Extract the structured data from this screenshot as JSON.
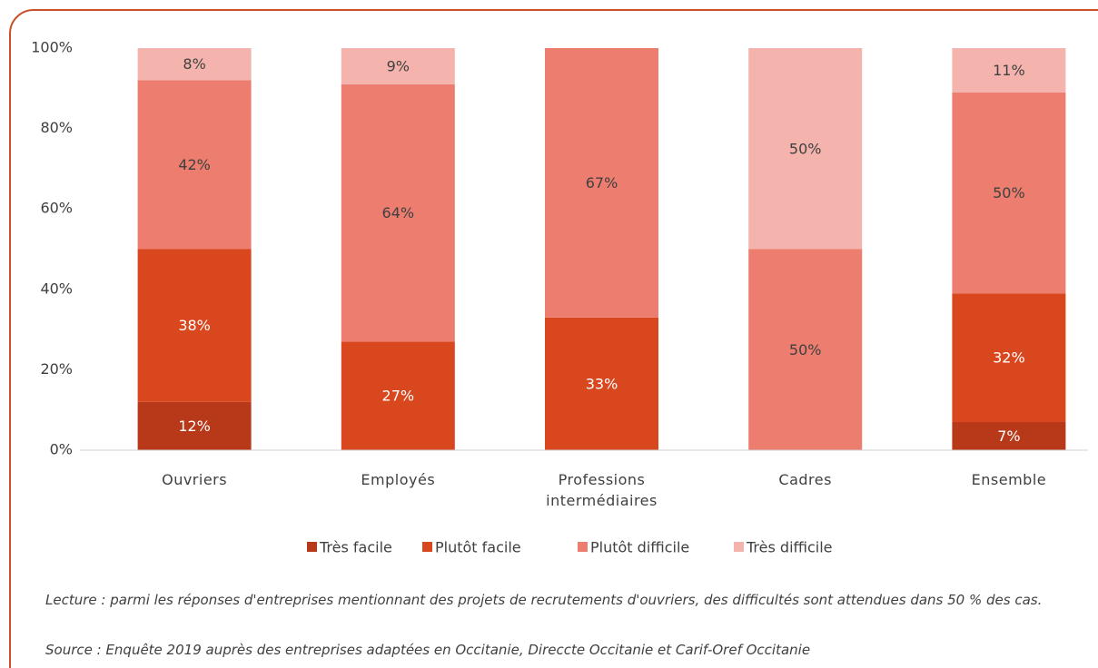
{
  "chart_data": {
    "type": "stacked_bar",
    "categories": [
      "Ouvriers",
      "Employés",
      "Professions intermédiaires",
      "Cadres",
      "Ensemble"
    ],
    "series": [
      {
        "name": "Très facile",
        "color": "#b8391a",
        "values": [
          12,
          0,
          0,
          0,
          7
        ],
        "value_labels": [
          "12%",
          null,
          null,
          null,
          "7%"
        ]
      },
      {
        "name": "Plutôt facile",
        "color": "#d9471f",
        "values": [
          38,
          27,
          33,
          0,
          32
        ],
        "value_labels": [
          "38%",
          "27%",
          "33%",
          null,
          "32%"
        ]
      },
      {
        "name": "Plutôt difficile",
        "color": "#ec7d6f",
        "values": [
          42,
          64,
          67,
          50,
          50
        ],
        "value_labels": [
          "42%",
          "64%",
          "67%",
          "50%",
          "50%"
        ]
      },
      {
        "name": "Très difficile",
        "color": "#f4b4ad",
        "values": [
          8,
          9,
          0,
          50,
          11
        ],
        "value_labels": [
          "8%",
          "9%",
          null,
          "50%",
          "11%"
        ]
      }
    ],
    "ylim": [
      0,
      100
    ],
    "yticks": [
      {
        "value": 0,
        "label": "0%"
      },
      {
        "value": 20,
        "label": "20%"
      },
      {
        "value": 40,
        "label": "40%"
      },
      {
        "value": 60,
        "label": "60%"
      },
      {
        "value": 80,
        "label": "80%"
      },
      {
        "value": 100,
        "label": "100%"
      }
    ],
    "legend": "bottom",
    "notes": [
      "Lecture : parmi les réponses d'entreprises mentionnant des projets de recrutements d'ouvriers, des difficultés sont attendues dans 50 % des cas.",
      "Source : Enquête 2019 auprès des entreprises adaptées en Occitanie, Direccte Occitanie et Carif-Oref Occitanie"
    ]
  }
}
